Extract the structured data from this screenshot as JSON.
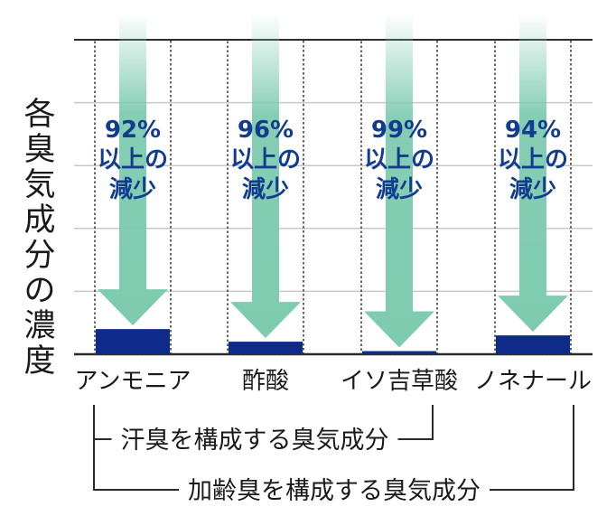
{
  "chart_data": {
    "type": "bar",
    "ylabel": "各臭気成分の濃度",
    "categories": [
      "アンモニア",
      "酢酸",
      "イソ吉草酸",
      "ノネナール"
    ],
    "values": [
      8,
      4,
      1,
      6
    ],
    "baseline": 100,
    "ylim": [
      0,
      100
    ],
    "reductions": [
      {
        "percent": "92%",
        "line1": "以上の",
        "line2": "減少"
      },
      {
        "percent": "96%",
        "line1": "以上の",
        "line2": "減少"
      },
      {
        "percent": "99%",
        "line1": "以上の",
        "line2": "減少"
      },
      {
        "percent": "94%",
        "line1": "以上の",
        "line2": "減少"
      }
    ],
    "grid": true,
    "groups": [
      {
        "label": "汗臭を構成する臭気成分",
        "from": 0,
        "to": 2
      },
      {
        "label": "加齢臭を構成する臭気成分",
        "from": 0,
        "to": 3
      }
    ],
    "colors": {
      "bar": "#0f2b8a",
      "arrow": "#7ecbb0",
      "reduction_text": "#123c8f"
    }
  }
}
